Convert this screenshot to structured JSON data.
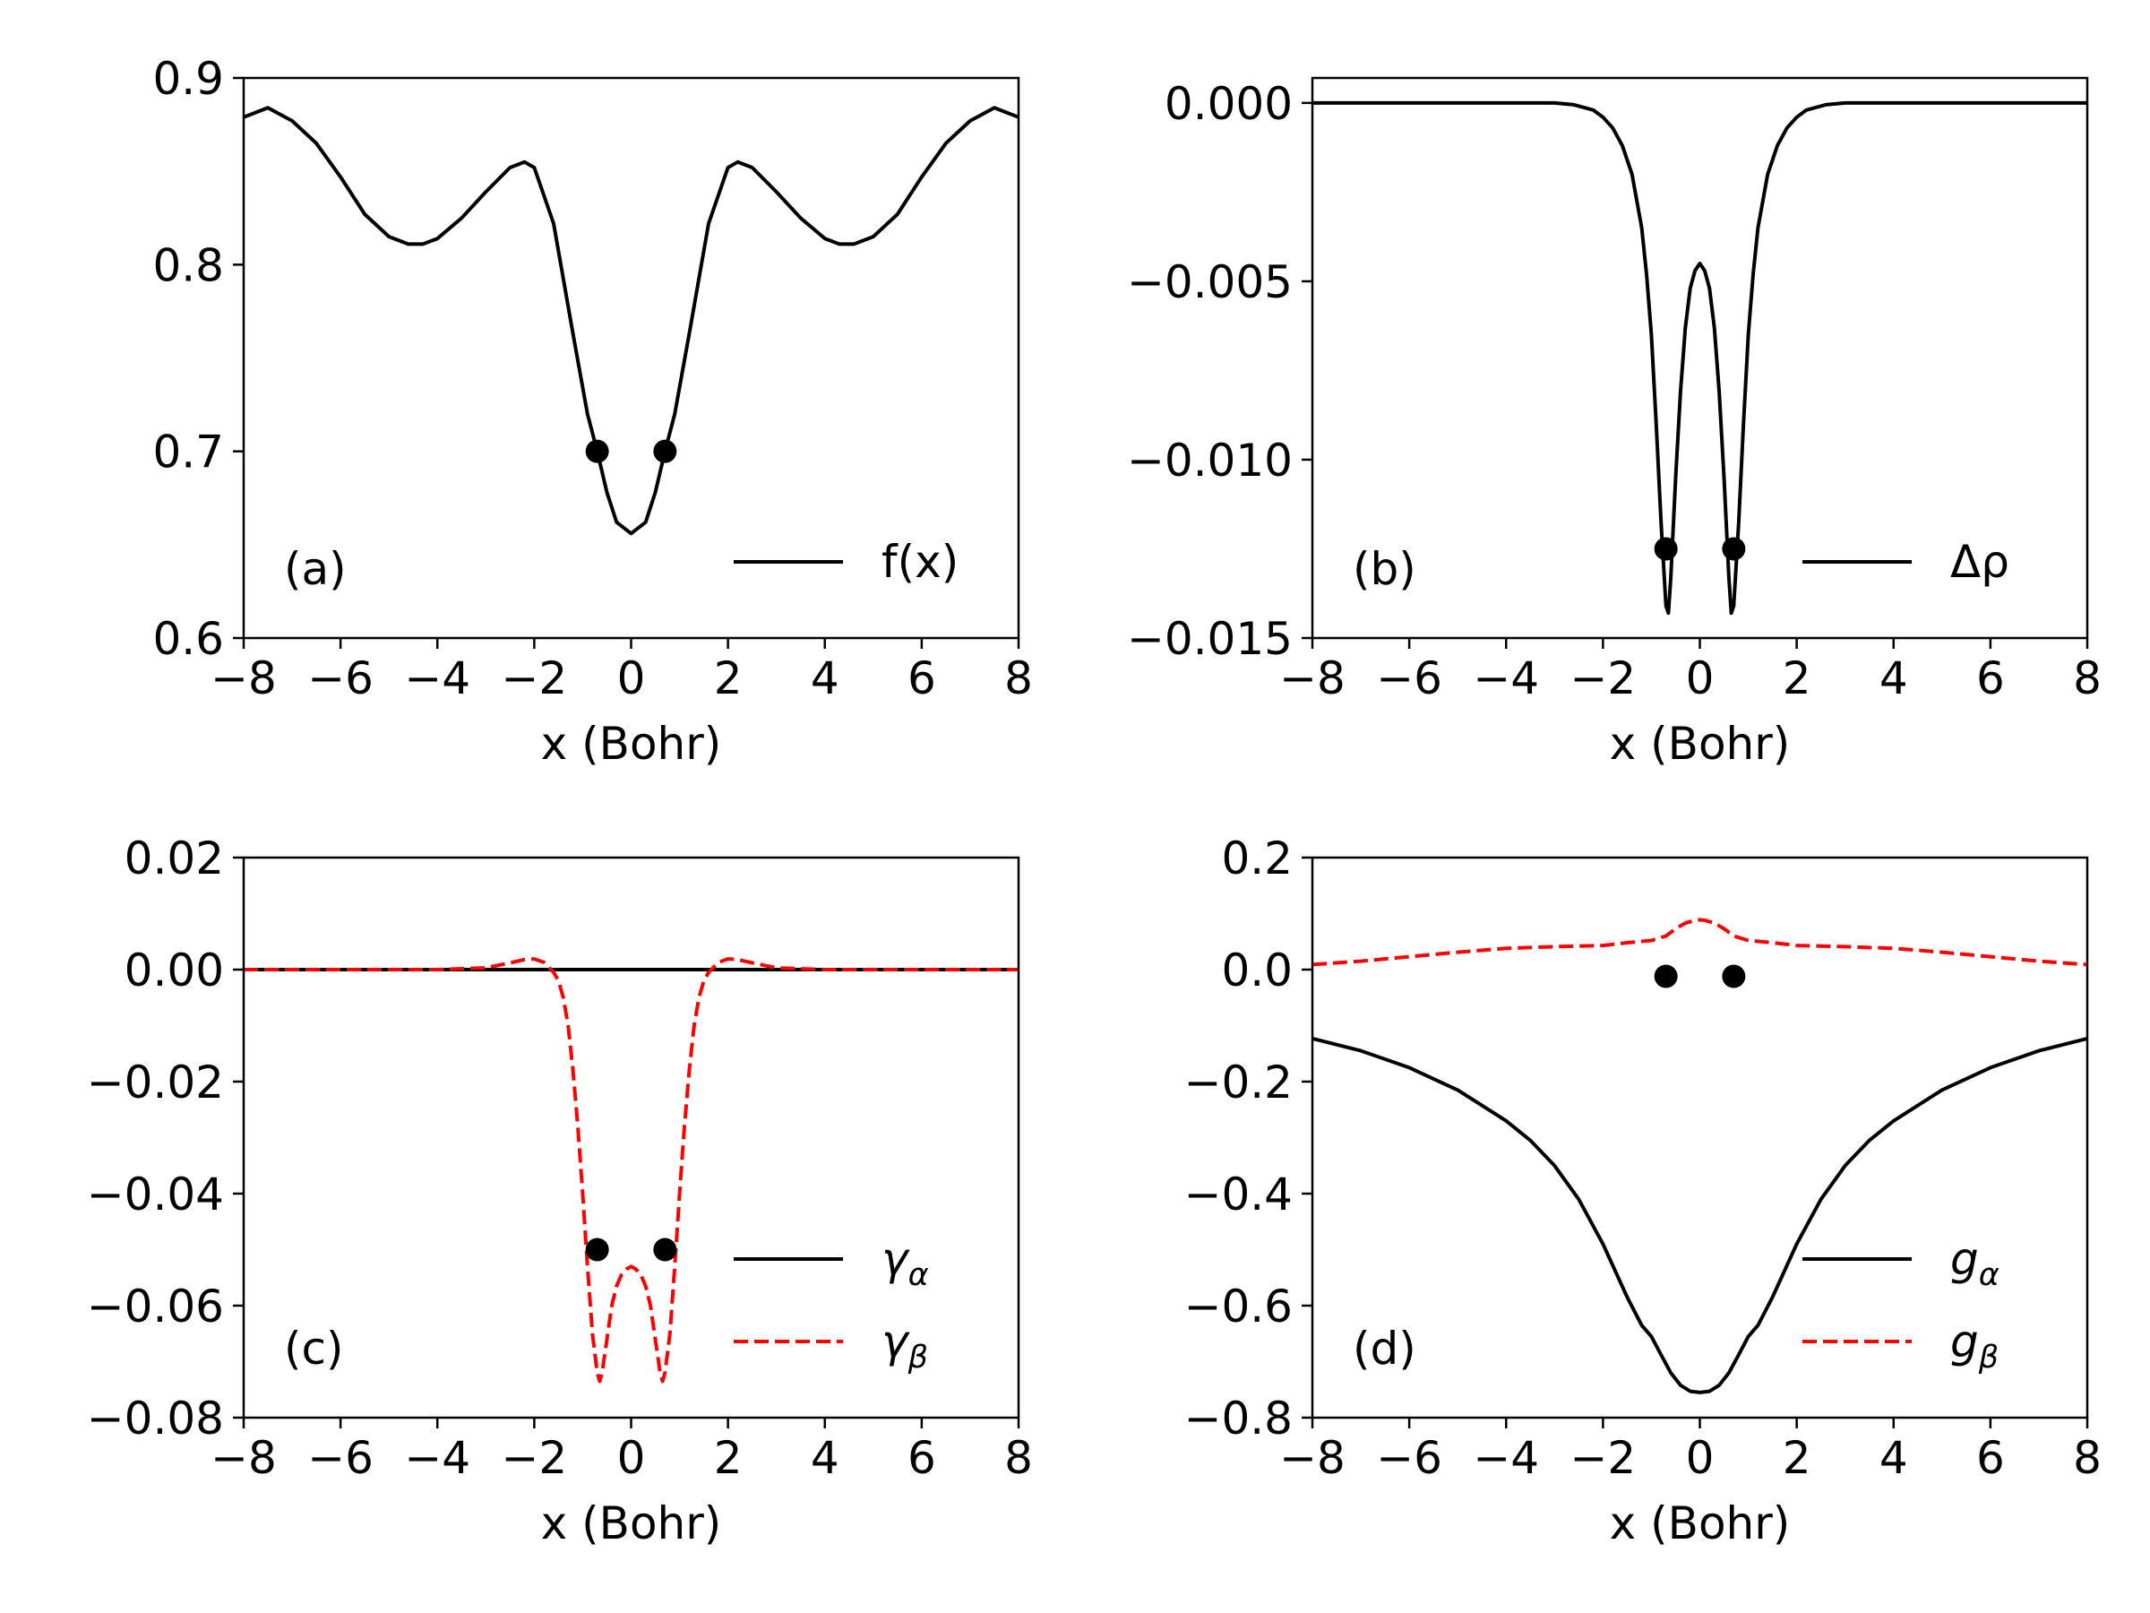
{
  "chart_data": [
    {
      "panel": "(a)",
      "type": "line",
      "xlabel": "x (Bohr)",
      "ylabel": "",
      "xlim": [
        -8,
        8
      ],
      "ylim": [
        0.6,
        0.9
      ],
      "xticks": [
        -8,
        -6,
        -4,
        -2,
        0,
        2,
        4,
        6,
        8
      ],
      "xtick_labels": [
        "−8",
        "−6",
        "−4",
        "−2",
        "0",
        "2",
        "4",
        "6",
        "8"
      ],
      "yticks": [
        0.6,
        0.7,
        0.8,
        0.9
      ],
      "ytick_labels": [
        "0.6",
        "0.7",
        "0.8",
        "0.9"
      ],
      "legend_position": "lower-right",
      "series": [
        {
          "name": "f(x)",
          "legend_label": "f(x)",
          "style": "solid",
          "color": "#000000",
          "x": [
            -8,
            -7.5,
            -7,
            -6.5,
            -6,
            -5.5,
            -5,
            -4.6,
            -4.3,
            -4,
            -3.5,
            -3,
            -2.5,
            -2.2,
            -2,
            -1.6,
            -1.2,
            -0.9,
            -0.7,
            -0.5,
            -0.3,
            0,
            0.3,
            0.5,
            0.7,
            0.9,
            1.2,
            1.6,
            2,
            2.2,
            2.5,
            3,
            3.5,
            4,
            4.3,
            4.6,
            5,
            5.5,
            6,
            6.5,
            7,
            7.5,
            8
          ],
          "y": [
            0.879,
            0.884,
            0.877,
            0.865,
            0.847,
            0.827,
            0.815,
            0.811,
            0.811,
            0.814,
            0.825,
            0.839,
            0.852,
            0.855,
            0.852,
            0.822,
            0.763,
            0.72,
            0.7,
            0.678,
            0.662,
            0.656,
            0.662,
            0.678,
            0.7,
            0.72,
            0.763,
            0.822,
            0.852,
            0.855,
            0.852,
            0.839,
            0.825,
            0.814,
            0.811,
            0.811,
            0.815,
            0.827,
            0.847,
            0.865,
            0.877,
            0.884,
            0.879
          ]
        }
      ],
      "markers": {
        "x": [
          -0.7,
          0.7
        ],
        "y": [
          0.7,
          0.7
        ]
      }
    },
    {
      "panel": "(b)",
      "type": "line",
      "xlabel": "x (Bohr)",
      "ylabel": "",
      "xlim": [
        -8,
        8
      ],
      "ylim": [
        -0.015,
        0.0007
      ],
      "xticks": [
        -8,
        -6,
        -4,
        -2,
        0,
        2,
        4,
        6,
        8
      ],
      "xtick_labels": [
        "−8",
        "−6",
        "−4",
        "−2",
        "0",
        "2",
        "4",
        "6",
        "8"
      ],
      "yticks": [
        0.0,
        -0.005,
        -0.01,
        -0.015
      ],
      "ytick_labels": [
        "0.000",
        "−0.005",
        "−0.010",
        "−0.015"
      ],
      "legend_position": "lower-right",
      "series": [
        {
          "name": "Δρ",
          "legend_label": "Δρ",
          "style": "solid",
          "color": "#000000",
          "x": [
            -8,
            -3,
            -2.6,
            -2.2,
            -2,
            -1.8,
            -1.6,
            -1.4,
            -1.2,
            -1.1,
            -1.0,
            -0.9,
            -0.8,
            -0.7,
            -0.65,
            -0.6,
            -0.5,
            -0.4,
            -0.3,
            -0.2,
            -0.1,
            0,
            0.1,
            0.2,
            0.3,
            0.4,
            0.5,
            0.6,
            0.65,
            0.7,
            0.8,
            0.9,
            1.0,
            1.1,
            1.2,
            1.4,
            1.6,
            1.8,
            2,
            2.2,
            2.6,
            3,
            8
          ],
          "y": [
            0.0,
            0.0,
            -5e-05,
            -0.0002,
            -0.0004,
            -0.0007,
            -0.0012,
            -0.002,
            -0.0035,
            -0.0048,
            -0.0065,
            -0.009,
            -0.0118,
            -0.0141,
            -0.0143,
            -0.0133,
            -0.0105,
            -0.0081,
            -0.0063,
            -0.0052,
            -0.0047,
            -0.0045,
            -0.0047,
            -0.0052,
            -0.0063,
            -0.0081,
            -0.0105,
            -0.0133,
            -0.0143,
            -0.0141,
            -0.0118,
            -0.009,
            -0.0065,
            -0.0048,
            -0.0035,
            -0.002,
            -0.0012,
            -0.0007,
            -0.0004,
            -0.0002,
            -5e-05,
            0.0,
            0.0
          ]
        }
      ],
      "markers": {
        "x": [
          -0.7,
          0.7
        ],
        "y": [
          -0.0125,
          -0.0125
        ]
      }
    },
    {
      "panel": "(c)",
      "type": "line",
      "xlabel": "x (Bohr)",
      "ylabel": "",
      "xlim": [
        -8,
        8
      ],
      "ylim": [
        -0.08,
        0.02
      ],
      "xticks": [
        -8,
        -6,
        -4,
        -2,
        0,
        2,
        4,
        6,
        8
      ],
      "xtick_labels": [
        "−8",
        "−6",
        "−4",
        "−2",
        "0",
        "2",
        "4",
        "6",
        "8"
      ],
      "yticks": [
        0.02,
        0.0,
        -0.02,
        -0.04,
        -0.06,
        -0.08
      ],
      "ytick_labels": [
        "0.02",
        "0.00",
        "−0.02",
        "−0.04",
        "−0.06",
        "−0.08"
      ],
      "legend_position": "lower-right",
      "series": [
        {
          "name": "gamma_alpha",
          "legend_label": "γ",
          "legend_sub": "α",
          "style": "solid",
          "color": "#000000",
          "x": [
            -8,
            8
          ],
          "y": [
            0.0,
            0.0
          ]
        },
        {
          "name": "gamma_beta",
          "legend_label": "γ",
          "legend_sub": "β",
          "style": "dashed",
          "color": "#ff0000",
          "x": [
            -8,
            -4,
            -3,
            -2.5,
            -2.2,
            -2,
            -1.8,
            -1.6,
            -1.5,
            -1.4,
            -1.3,
            -1.2,
            -1.1,
            -1.0,
            -0.9,
            -0.8,
            -0.7,
            -0.65,
            -0.6,
            -0.5,
            -0.4,
            -0.3,
            -0.2,
            -0.1,
            0,
            0.1,
            0.2,
            0.3,
            0.4,
            0.5,
            0.6,
            0.65,
            0.7,
            0.8,
            0.9,
            1.0,
            1.1,
            1.2,
            1.3,
            1.4,
            1.5,
            1.6,
            1.8,
            2,
            2.2,
            2.5,
            3,
            4,
            8
          ],
          "y": [
            0.0,
            0.0,
            0.0003,
            0.0012,
            0.0018,
            0.0019,
            0.0013,
            -0.0005,
            -0.002,
            -0.005,
            -0.01,
            -0.018,
            -0.028,
            -0.04,
            -0.053,
            -0.065,
            -0.072,
            -0.0735,
            -0.072,
            -0.066,
            -0.06,
            -0.0565,
            -0.0545,
            -0.0535,
            -0.053,
            -0.0535,
            -0.0545,
            -0.0565,
            -0.06,
            -0.066,
            -0.072,
            -0.0735,
            -0.072,
            -0.065,
            -0.053,
            -0.04,
            -0.028,
            -0.018,
            -0.01,
            -0.005,
            -0.002,
            -0.0005,
            0.0013,
            0.0019,
            0.0018,
            0.0012,
            0.0003,
            0.0,
            0.0
          ]
        }
      ],
      "markers": {
        "x": [
          -0.7,
          0.7
        ],
        "y": [
          -0.05,
          -0.05
        ]
      }
    },
    {
      "panel": "(d)",
      "type": "line",
      "xlabel": "x (Bohr)",
      "ylabel": "",
      "xlim": [
        -8,
        8
      ],
      "ylim": [
        -0.8,
        0.2
      ],
      "xticks": [
        -8,
        -6,
        -4,
        -2,
        0,
        2,
        4,
        6,
        8
      ],
      "xtick_labels": [
        "−8",
        "−6",
        "−4",
        "−2",
        "0",
        "2",
        "4",
        "6",
        "8"
      ],
      "yticks": [
        0.2,
        0.0,
        -0.2,
        -0.4,
        -0.6,
        -0.8
      ],
      "ytick_labels": [
        "0.2",
        "0.0",
        "−0.2",
        "−0.4",
        "−0.6",
        "−0.8"
      ],
      "legend_position": "lower-right",
      "series": [
        {
          "name": "g_alpha",
          "legend_label": "g",
          "legend_sub": "α",
          "style": "solid",
          "color": "#000000",
          "x": [
            -8,
            -7,
            -6,
            -5,
            -4,
            -3.5,
            -3,
            -2.5,
            -2,
            -1.5,
            -1.2,
            -1,
            -0.8,
            -0.6,
            -0.4,
            -0.2,
            0,
            0.2,
            0.4,
            0.6,
            0.8,
            1,
            1.2,
            1.5,
            2,
            2.5,
            3,
            3.5,
            4,
            5,
            6,
            7,
            8
          ],
          "y": [
            -0.123,
            -0.145,
            -0.175,
            -0.215,
            -0.27,
            -0.305,
            -0.35,
            -0.41,
            -0.49,
            -0.585,
            -0.635,
            -0.655,
            -0.688,
            -0.72,
            -0.742,
            -0.753,
            -0.755,
            -0.753,
            -0.742,
            -0.72,
            -0.688,
            -0.655,
            -0.635,
            -0.585,
            -0.49,
            -0.41,
            -0.35,
            -0.305,
            -0.27,
            -0.215,
            -0.175,
            -0.145,
            -0.123
          ]
        },
        {
          "name": "g_beta",
          "legend_label": "g",
          "legend_sub": "β",
          "style": "dashed",
          "color": "#ff0000",
          "x": [
            -8,
            -7,
            -6,
            -5,
            -4,
            -3,
            -2,
            -1.5,
            -1,
            -0.7,
            -0.5,
            -0.3,
            -0.1,
            0,
            0.1,
            0.3,
            0.5,
            0.7,
            1,
            1.5,
            2,
            3,
            4,
            5,
            6,
            7,
            8
          ],
          "y": [
            0.009,
            0.015,
            0.023,
            0.031,
            0.038,
            0.041,
            0.043,
            0.048,
            0.052,
            0.06,
            0.073,
            0.083,
            0.088,
            0.089,
            0.088,
            0.083,
            0.073,
            0.06,
            0.052,
            0.048,
            0.043,
            0.041,
            0.038,
            0.031,
            0.023,
            0.015,
            0.009
          ]
        }
      ],
      "markers": {
        "x": [
          -0.7,
          0.7
        ],
        "y": [
          -0.012,
          -0.012
        ]
      }
    }
  ]
}
